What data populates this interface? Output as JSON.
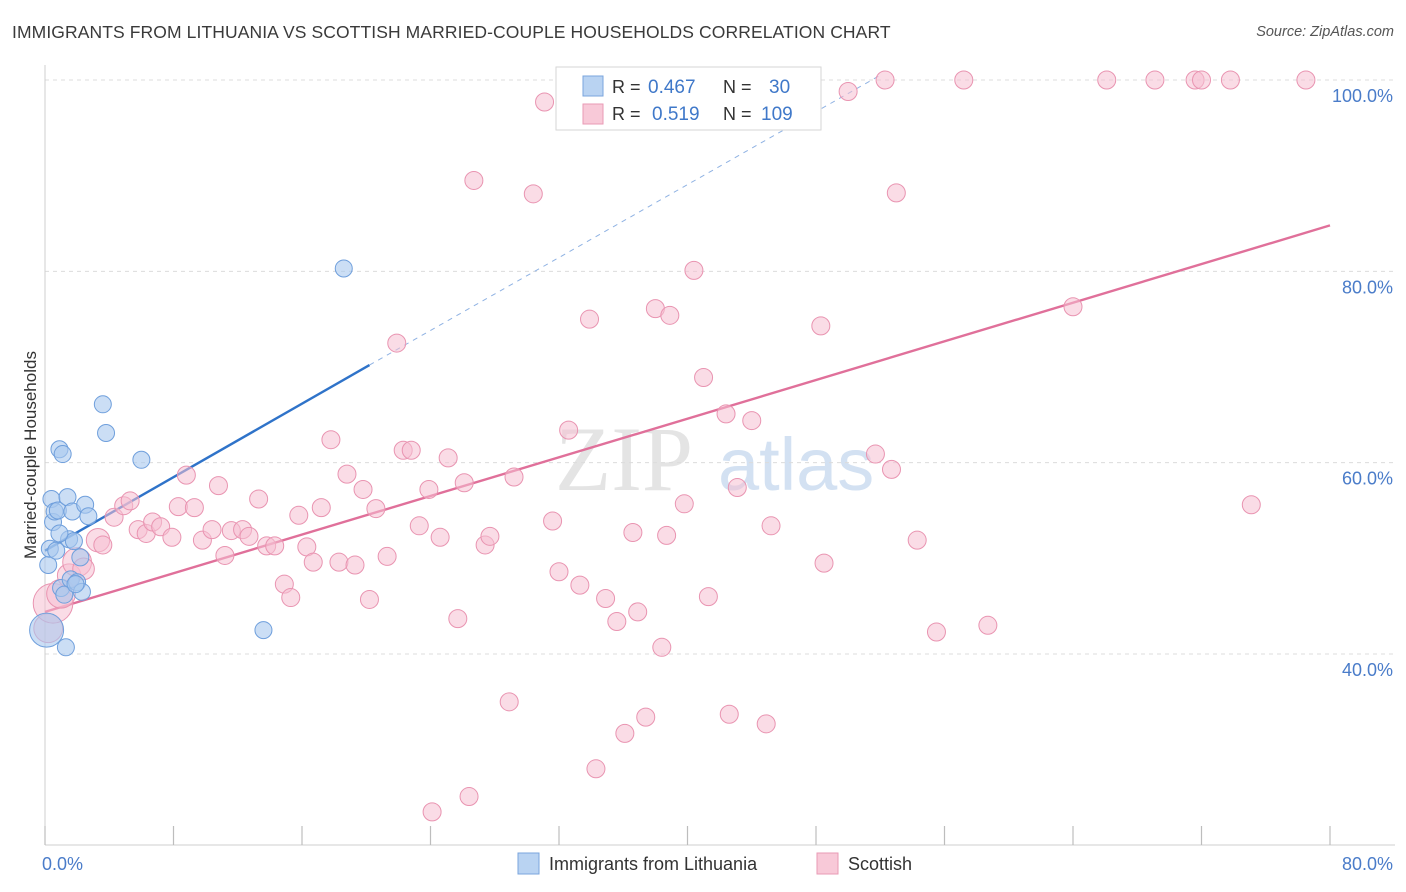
{
  "title": "IMMIGRANTS FROM LITHUANIA VS SCOTTISH MARRIED-COUPLE HOUSEHOLDS CORRELATION CHART",
  "source": "Source: ZipAtlas.com",
  "watermark": {
    "part1": "ZIP",
    "part2": "atlas"
  },
  "legend": {
    "r_label": "R =",
    "n_label": "N =",
    "series1": {
      "r": "0.467",
      "n": "30"
    },
    "series2": {
      "r": "0.519",
      "n": "109"
    }
  },
  "bottom_legend": [
    "Immigrants from Lithuania",
    "Scottish"
  ],
  "colors": {
    "lithuania_fill": "#a9c8ef",
    "lithuania_stroke": "#6f9fdc",
    "lithuania_line": "#2f73c9",
    "scottish_fill": "#f6bfd1",
    "scottish_stroke": "#e994b1",
    "scottish_line": "#e0709a",
    "grid": "#dcdcdc",
    "tick_label": "#4a7cc9"
  },
  "chart_data": {
    "type": "scatter",
    "title": "IMMIGRANTS FROM LITHUANIA VS SCOTTISH MARRIED-COUPLE HOUSEHOLDS CORRELATION CHART",
    "xlabel": "",
    "ylabel": "Married-couple Households",
    "xlim": [
      0,
      80
    ],
    "ylim": [
      21,
      102
    ],
    "x_tick_labels": [
      "0.0%",
      "80.0%"
    ],
    "y_ticks": [
      40,
      60,
      80,
      100
    ],
    "y_tick_labels": [
      "40.0%",
      "60.0%",
      "80.0%",
      "100.0%"
    ],
    "grid": true,
    "legend_placement": "top-center",
    "series": [
      {
        "name": "Immigrants from Lithuania",
        "r": 0.467,
        "n": 30,
        "trend": {
          "x": [
            0,
            20.2
          ],
          "y": [
            50.8,
            70.2
          ]
        },
        "trend_extension": {
          "x": [
            20.2,
            52
          ],
          "y": [
            70.2,
            100.5
          ]
        },
        "points": [
          {
            "x": 0.1,
            "y": 42.5,
            "s": 2.0
          },
          {
            "x": 0.2,
            "y": 49.3,
            "s": 1
          },
          {
            "x": 0.3,
            "y": 51.0,
            "s": 1
          },
          {
            "x": 0.4,
            "y": 56.2,
            "s": 1
          },
          {
            "x": 0.5,
            "y": 53.8,
            "s": 1
          },
          {
            "x": 0.6,
            "y": 54.9,
            "s": 1
          },
          {
            "x": 0.7,
            "y": 50.8,
            "s": 1
          },
          {
            "x": 0.8,
            "y": 55.0,
            "s": 1
          },
          {
            "x": 0.9,
            "y": 61.4,
            "s": 1
          },
          {
            "x": 1.0,
            "y": 46.9,
            "s": 1
          },
          {
            "x": 1.1,
            "y": 60.9,
            "s": 1
          },
          {
            "x": 1.2,
            "y": 46.2,
            "s": 1
          },
          {
            "x": 1.3,
            "y": 40.7,
            "s": 1
          },
          {
            "x": 1.4,
            "y": 56.4,
            "s": 1
          },
          {
            "x": 1.5,
            "y": 52.0,
            "s": 1
          },
          {
            "x": 1.6,
            "y": 47.8,
            "s": 1
          },
          {
            "x": 1.7,
            "y": 54.9,
            "s": 1
          },
          {
            "x": 1.8,
            "y": 51.8,
            "s": 1
          },
          {
            "x": 2.0,
            "y": 47.5,
            "s": 1
          },
          {
            "x": 2.2,
            "y": 50.1,
            "s": 1
          },
          {
            "x": 2.3,
            "y": 46.5,
            "s": 1
          },
          {
            "x": 2.5,
            "y": 55.6,
            "s": 1
          },
          {
            "x": 2.7,
            "y": 54.4,
            "s": 1
          },
          {
            "x": 3.6,
            "y": 66.1,
            "s": 1
          },
          {
            "x": 3.8,
            "y": 63.1,
            "s": 1
          },
          {
            "x": 6.0,
            "y": 60.3,
            "s": 1
          },
          {
            "x": 13.6,
            "y": 42.5,
            "s": 1
          },
          {
            "x": 18.6,
            "y": 80.3,
            "s": 1
          },
          {
            "x": 0.9,
            "y": 52.6,
            "s": 1
          },
          {
            "x": 1.9,
            "y": 47.3,
            "s": 1
          }
        ]
      },
      {
        "name": "Scottish",
        "r": 0.519,
        "n": 109,
        "trend": {
          "x": [
            0,
            80
          ],
          "y": [
            44.4,
            84.8
          ]
        },
        "points": [
          {
            "x": 0.2,
            "y": 42.7,
            "s": 1.6
          },
          {
            "x": 0.5,
            "y": 45.3,
            "s": 2.2
          },
          {
            "x": 1.0,
            "y": 46.3,
            "s": 1.6
          },
          {
            "x": 1.5,
            "y": 48.2,
            "s": 1.3
          },
          {
            "x": 2.0,
            "y": 49.6,
            "s": 1.6
          },
          {
            "x": 2.4,
            "y": 48.9,
            "s": 1.2
          },
          {
            "x": 3.3,
            "y": 51.9,
            "s": 1.3
          },
          {
            "x": 3.6,
            "y": 51.4,
            "s": 1
          },
          {
            "x": 4.3,
            "y": 54.3,
            "s": 1
          },
          {
            "x": 4.9,
            "y": 55.5,
            "s": 1
          },
          {
            "x": 5.3,
            "y": 56.0,
            "s": 1
          },
          {
            "x": 5.8,
            "y": 53.0,
            "s": 1
          },
          {
            "x": 6.3,
            "y": 52.6,
            "s": 1
          },
          {
            "x": 6.7,
            "y": 53.8,
            "s": 1
          },
          {
            "x": 7.2,
            "y": 53.3,
            "s": 1
          },
          {
            "x": 7.9,
            "y": 52.2,
            "s": 1
          },
          {
            "x": 8.3,
            "y": 55.4,
            "s": 1
          },
          {
            "x": 8.8,
            "y": 58.7,
            "s": 1
          },
          {
            "x": 9.3,
            "y": 55.3,
            "s": 1
          },
          {
            "x": 9.8,
            "y": 51.9,
            "s": 1
          },
          {
            "x": 10.4,
            "y": 53.0,
            "s": 1
          },
          {
            "x": 10.8,
            "y": 57.6,
            "s": 1
          },
          {
            "x": 11.2,
            "y": 50.3,
            "s": 1
          },
          {
            "x": 11.6,
            "y": 52.9,
            "s": 1
          },
          {
            "x": 12.3,
            "y": 53.0,
            "s": 1
          },
          {
            "x": 12.7,
            "y": 52.3,
            "s": 1
          },
          {
            "x": 13.3,
            "y": 56.2,
            "s": 1
          },
          {
            "x": 13.8,
            "y": 51.3,
            "s": 1
          },
          {
            "x": 14.3,
            "y": 51.3,
            "s": 1
          },
          {
            "x": 14.9,
            "y": 47.3,
            "s": 1
          },
          {
            "x": 15.3,
            "y": 45.9,
            "s": 1
          },
          {
            "x": 15.8,
            "y": 54.5,
            "s": 1
          },
          {
            "x": 16.3,
            "y": 51.2,
            "s": 1
          },
          {
            "x": 16.7,
            "y": 49.6,
            "s": 1
          },
          {
            "x": 17.2,
            "y": 55.3,
            "s": 1
          },
          {
            "x": 17.8,
            "y": 62.4,
            "s": 1
          },
          {
            "x": 18.3,
            "y": 49.6,
            "s": 1
          },
          {
            "x": 18.8,
            "y": 58.8,
            "s": 1
          },
          {
            "x": 19.3,
            "y": 49.3,
            "s": 1
          },
          {
            "x": 19.8,
            "y": 57.2,
            "s": 1
          },
          {
            "x": 20.2,
            "y": 45.7,
            "s": 1
          },
          {
            "x": 20.6,
            "y": 55.2,
            "s": 1
          },
          {
            "x": 21.3,
            "y": 50.2,
            "s": 1
          },
          {
            "x": 21.9,
            "y": 72.5,
            "s": 1
          },
          {
            "x": 22.3,
            "y": 61.3,
            "s": 1
          },
          {
            "x": 22.8,
            "y": 61.3,
            "s": 1
          },
          {
            "x": 23.3,
            "y": 53.4,
            "s": 1
          },
          {
            "x": 23.9,
            "y": 57.2,
            "s": 1
          },
          {
            "x": 24.6,
            "y": 52.2,
            "s": 1
          },
          {
            "x": 25.1,
            "y": 60.5,
            "s": 1
          },
          {
            "x": 25.7,
            "y": 43.7,
            "s": 1
          },
          {
            "x": 26.1,
            "y": 57.9,
            "s": 1
          },
          {
            "x": 26.7,
            "y": 89.5,
            "s": 1
          },
          {
            "x": 27.4,
            "y": 51.4,
            "s": 1
          },
          {
            "x": 27.7,
            "y": 52.3,
            "s": 1
          },
          {
            "x": 28.9,
            "y": 35.0,
            "s": 1
          },
          {
            "x": 29.2,
            "y": 58.5,
            "s": 1
          },
          {
            "x": 30.4,
            "y": 88.1,
            "s": 1
          },
          {
            "x": 31.1,
            "y": 97.7,
            "s": 1
          },
          {
            "x": 31.6,
            "y": 53.9,
            "s": 1
          },
          {
            "x": 32.0,
            "y": 48.6,
            "s": 1
          },
          {
            "x": 32.6,
            "y": 63.4,
            "s": 1
          },
          {
            "x": 33.3,
            "y": 47.2,
            "s": 1
          },
          {
            "x": 33.9,
            "y": 75.0,
            "s": 1
          },
          {
            "x": 34.3,
            "y": 28.0,
            "s": 1
          },
          {
            "x": 34.9,
            "y": 45.8,
            "s": 1
          },
          {
            "x": 35.6,
            "y": 43.4,
            "s": 1
          },
          {
            "x": 36.1,
            "y": 31.7,
            "s": 1
          },
          {
            "x": 36.6,
            "y": 52.7,
            "s": 1
          },
          {
            "x": 36.9,
            "y": 44.4,
            "s": 1
          },
          {
            "x": 37.4,
            "y": 33.4,
            "s": 1
          },
          {
            "x": 38.0,
            "y": 76.1,
            "s": 1
          },
          {
            "x": 38.4,
            "y": 40.7,
            "s": 1
          },
          {
            "x": 38.7,
            "y": 52.4,
            "s": 1
          },
          {
            "x": 38.9,
            "y": 75.4,
            "s": 1
          },
          {
            "x": 39.8,
            "y": 55.7,
            "s": 1
          },
          {
            "x": 40.4,
            "y": 80.1,
            "s": 1
          },
          {
            "x": 41.0,
            "y": 68.9,
            "s": 1
          },
          {
            "x": 41.3,
            "y": 46.0,
            "s": 1
          },
          {
            "x": 42.4,
            "y": 65.1,
            "s": 1
          },
          {
            "x": 42.6,
            "y": 33.7,
            "s": 1
          },
          {
            "x": 43.1,
            "y": 57.4,
            "s": 1
          },
          {
            "x": 44.0,
            "y": 64.4,
            "s": 1
          },
          {
            "x": 44.9,
            "y": 32.7,
            "s": 1
          },
          {
            "x": 45.2,
            "y": 53.4,
            "s": 1
          },
          {
            "x": 45.2,
            "y": 95.9,
            "s": 1
          },
          {
            "x": 46.9,
            "y": 100.0,
            "s": 1
          },
          {
            "x": 48.3,
            "y": 74.3,
            "s": 1
          },
          {
            "x": 48.5,
            "y": 49.5,
            "s": 1
          },
          {
            "x": 50.0,
            "y": 98.8,
            "s": 1
          },
          {
            "x": 51.7,
            "y": 60.9,
            "s": 1
          },
          {
            "x": 52.3,
            "y": 100.0,
            "s": 1
          },
          {
            "x": 52.7,
            "y": 59.3,
            "s": 1
          },
          {
            "x": 53.0,
            "y": 88.2,
            "s": 1
          },
          {
            "x": 54.3,
            "y": 51.9,
            "s": 1
          },
          {
            "x": 55.5,
            "y": 42.3,
            "s": 1
          },
          {
            "x": 57.2,
            "y": 100.0,
            "s": 1
          },
          {
            "x": 58.7,
            "y": 43.0,
            "s": 1
          },
          {
            "x": 64.0,
            "y": 76.3,
            "s": 1
          },
          {
            "x": 66.1,
            "y": 100.0,
            "s": 1
          },
          {
            "x": 69.1,
            "y": 100.0,
            "s": 1
          },
          {
            "x": 71.6,
            "y": 100.0,
            "s": 1
          },
          {
            "x": 72.0,
            "y": 100.0,
            "s": 1
          },
          {
            "x": 73.8,
            "y": 100.0,
            "s": 1
          },
          {
            "x": 75.1,
            "y": 55.6,
            "s": 1
          },
          {
            "x": 78.5,
            "y": 100.0,
            "s": 1
          },
          {
            "x": 24.1,
            "y": 23.5,
            "s": 1
          },
          {
            "x": 26.4,
            "y": 25.1,
            "s": 1
          },
          {
            "x": 45.0,
            "y": 100.0,
            "s": 1
          }
        ]
      }
    ]
  }
}
